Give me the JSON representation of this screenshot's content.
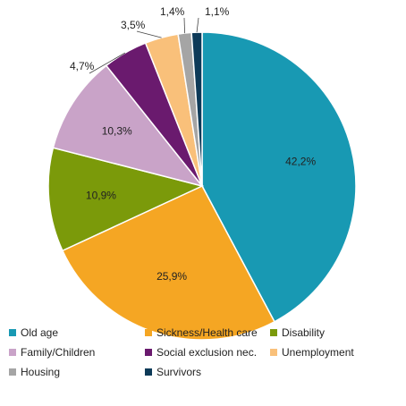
{
  "chart_data": {
    "type": "pie",
    "title": "",
    "start_angle_deg": 0,
    "direction": "clockwise",
    "legend_position": "bottom",
    "slices": [
      {
        "name": "Old age",
        "value": 42.2,
        "label": "42,2%",
        "color": "#1899b3"
      },
      {
        "name": "Sickness/Health care",
        "value": 25.9,
        "label": "25,9%",
        "color": "#f5a623"
      },
      {
        "name": "Disability",
        "value": 10.9,
        "label": "10,9%",
        "color": "#7b9a0a"
      },
      {
        "name": "Family/Children",
        "value": 10.3,
        "label": "10,3%",
        "color": "#c9a3c8"
      },
      {
        "name": "Social exclusion nec.",
        "value": 4.7,
        "label": "4,7%",
        "color": "#6a1a6e"
      },
      {
        "name": "Unemployment",
        "value": 3.5,
        "label": "3,5%",
        "color": "#f9c07a"
      },
      {
        "name": "Housing",
        "value": 1.4,
        "label": "1,4%",
        "color": "#a5a5a5"
      },
      {
        "name": "Survivors",
        "value": 1.1,
        "label": "1,1%",
        "color": "#0d3a58"
      }
    ]
  }
}
